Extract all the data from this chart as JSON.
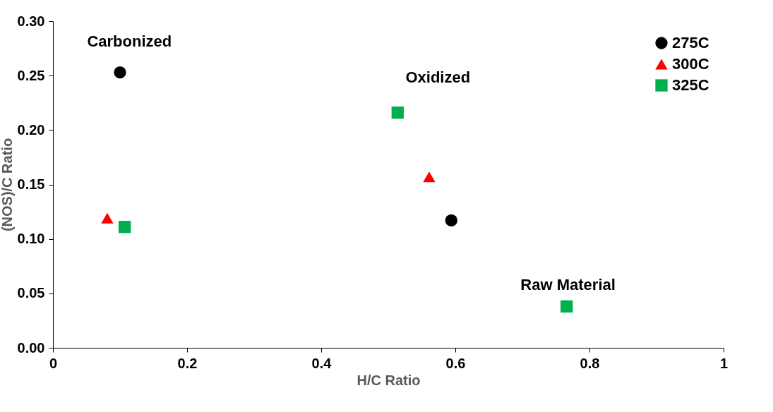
{
  "chart_data": {
    "type": "scatter",
    "xlabel": "H/C Ratio",
    "ylabel": "(NOS)/C Ratio",
    "xlim": [
      0,
      1
    ],
    "ylim": [
      0,
      0.3
    ],
    "xticks": [
      0,
      {
        "value": 0.2,
        "label": "0.2"
      },
      {
        "value": 0.4,
        "label": "0.4"
      },
      {
        "value": 0.6,
        "label": "0.6"
      },
      {
        "value": 0.8,
        "label": "0.8"
      },
      1
    ],
    "yticks": [
      {
        "value": 0,
        "label": "0.00"
      },
      {
        "value": 0.05,
        "label": "0.05"
      },
      {
        "value": 0.1,
        "label": "0.10"
      },
      {
        "value": 0.15,
        "label": "0.15"
      },
      {
        "value": 0.2,
        "label": "0.20"
      },
      {
        "value": 0.25,
        "label": "0.25"
      },
      {
        "value": 0.3,
        "label": "0.30"
      }
    ],
    "grid": false,
    "legend": "top right",
    "series": [
      {
        "name": "275C",
        "color": "#000000",
        "marker": "circle",
        "x": [
          0.1,
          0.594
        ],
        "values": [
          0.253,
          0.117
        ]
      },
      {
        "name": "300C",
        "color": "#ff0000",
        "marker": "triangle",
        "x": [
          0.081,
          0.561
        ],
        "values": [
          0.119,
          0.157
        ]
      },
      {
        "name": "325C",
        "color": "#00b050",
        "marker": "square",
        "x": [
          0.107,
          0.514,
          0.766
        ],
        "values": [
          0.111,
          0.216,
          0.038
        ]
      }
    ],
    "annotations": [
      "Carbonized",
      "Oxidized",
      "Raw Material"
    ]
  }
}
